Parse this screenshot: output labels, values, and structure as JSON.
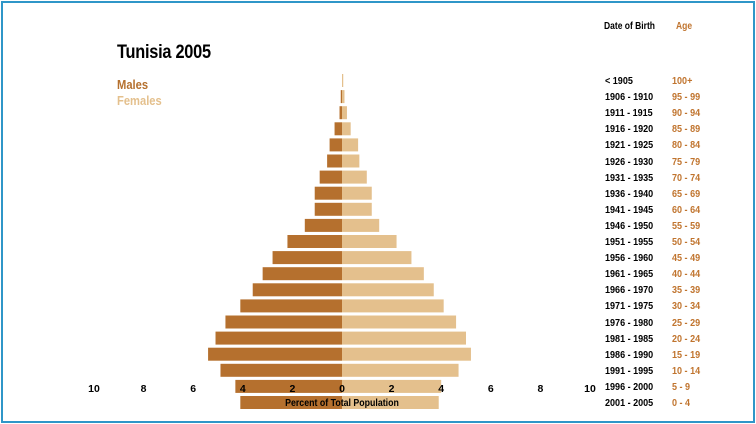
{
  "colors": {
    "males": "#b5702e",
    "females": "#e4c08d",
    "age": "#c0742e",
    "frame": "#2f96c8"
  },
  "chart_data": {
    "type": "bar",
    "subtype": "population-pyramid",
    "title": "Tunisia 2005",
    "xlabel": "Percent of Total Population",
    "xlim": [
      -10,
      10
    ],
    "x_ticks": [
      "10",
      "8",
      "6",
      "4",
      "2",
      "0",
      "2",
      "4",
      "6",
      "8",
      "10"
    ],
    "column_headers": {
      "date_of_birth": "Date of Birth",
      "age": "Age"
    },
    "legend": [
      "Males",
      "Females"
    ],
    "rows": [
      {
        "dob": "< 1905",
        "age": "100+",
        "males": 0.0,
        "females": 0.05
      },
      {
        "dob": "1906 - 1910",
        "age": "95 - 99",
        "males": 0.05,
        "females": 0.1
      },
      {
        "dob": "1911 - 1915",
        "age": "90 - 94",
        "males": 0.1,
        "females": 0.2
      },
      {
        "dob": "1916 - 1920",
        "age": "85 - 89",
        "males": 0.3,
        "females": 0.35
      },
      {
        "dob": "1921 - 1925",
        "age": "80 - 84",
        "males": 0.5,
        "females": 0.65
      },
      {
        "dob": "1926 - 1930",
        "age": "75 - 79",
        "males": 0.6,
        "females": 0.7
      },
      {
        "dob": "1931 - 1935",
        "age": "70 - 74",
        "males": 0.9,
        "females": 1.0
      },
      {
        "dob": "1936 - 1940",
        "age": "65 - 69",
        "males": 1.1,
        "females": 1.2
      },
      {
        "dob": "1941 - 1945",
        "age": "60 - 64",
        "males": 1.1,
        "females": 1.2
      },
      {
        "dob": "1946 - 1950",
        "age": "55 - 59",
        "males": 1.5,
        "females": 1.5
      },
      {
        "dob": "1951 - 1955",
        "age": "50 - 54",
        "males": 2.2,
        "females": 2.2
      },
      {
        "dob": "1956 - 1960",
        "age": "45 - 49",
        "males": 2.8,
        "females": 2.8
      },
      {
        "dob": "1961 - 1965",
        "age": "40 - 44",
        "males": 3.2,
        "females": 3.3
      },
      {
        "dob": "1966 - 1970",
        "age": "35 - 39",
        "males": 3.6,
        "females": 3.7
      },
      {
        "dob": "1971 - 1975",
        "age": "30 - 34",
        "males": 4.1,
        "females": 4.1
      },
      {
        "dob": "1976 - 1980",
        "age": "25 - 29",
        "males": 4.7,
        "females": 4.6
      },
      {
        "dob": "1981 - 1985",
        "age": "20 - 24",
        "males": 5.1,
        "females": 5.0
      },
      {
        "dob": "1986 - 1990",
        "age": "15 - 19",
        "males": 5.4,
        "females": 5.2
      },
      {
        "dob": "1991 - 1995",
        "age": "10 - 14",
        "males": 4.9,
        "females": 4.7
      },
      {
        "dob": "1996 - 2000",
        "age": "5 - 9",
        "males": 4.3,
        "females": 4.0
      },
      {
        "dob": "2001 - 2005",
        "age": "0 - 4",
        "males": 4.1,
        "females": 3.9
      }
    ]
  }
}
